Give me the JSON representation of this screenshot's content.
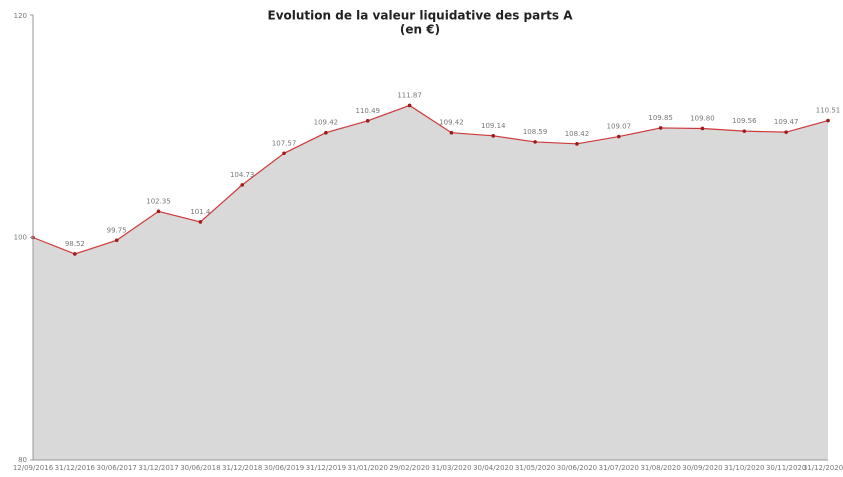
{
  "chart_data": {
    "type": "area",
    "title": "Evolution de la valeur liquidative des parts A",
    "subtitle": "(en €)",
    "categories": [
      "12/09/2016",
      "31/12/2016",
      "30/06/2017",
      "31/12/2017",
      "30/06/2018",
      "31/12/2018",
      "30/06/2019",
      "31/12/2019",
      "31/01/2020",
      "29/02/2020",
      "31/03/2020",
      "30/04/2020",
      "31/05/2020",
      "30/06/2020",
      "31/07/2020",
      "31/08/2020",
      "30/09/2020",
      "31/10/2020",
      "30/11/2020",
      "31/12/2020"
    ],
    "values": [
      100,
      98.52,
      99.75,
      102.35,
      101.4,
      104.73,
      107.57,
      109.42,
      110.49,
      111.87,
      109.42,
      109.14,
      108.59,
      108.42,
      109.07,
      109.85,
      109.8,
      109.56,
      109.47,
      110.51
    ],
    "value_labels": [
      null,
      "98.52",
      "99.75",
      "102.35",
      "101.4",
      "104.73",
      "107.57",
      "109.42",
      "110.49",
      "111.87",
      "109.42",
      "109.14",
      "108.59",
      "108.42",
      "109.07",
      "109.85",
      "109.80",
      "109.56",
      "109.47",
      "110.51"
    ],
    "color": "#d03a3a",
    "fill": "#d9d9d9",
    "ylim": [
      80,
      120
    ],
    "yticks": [
      80,
      100,
      120
    ],
    "grid": false
  }
}
